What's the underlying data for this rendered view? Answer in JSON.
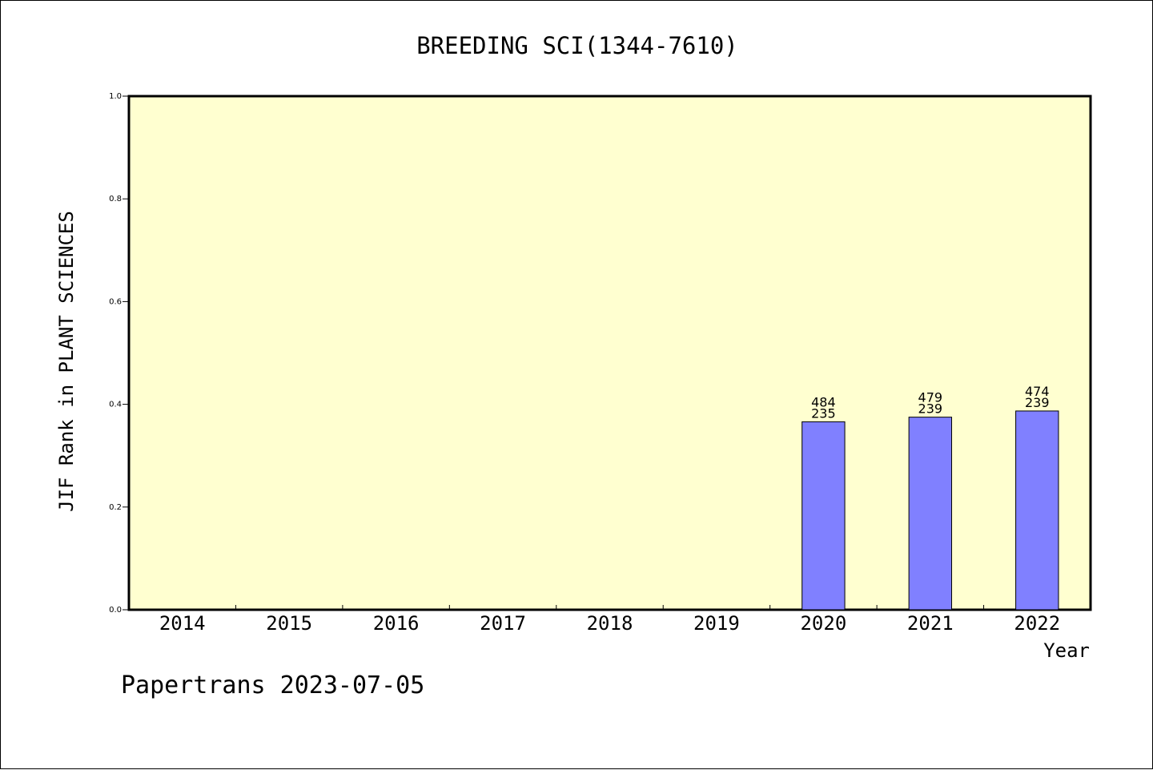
{
  "chart_data": {
    "type": "bar",
    "title": "BREEDING SCI(1344-7610)",
    "xlabel": "Year",
    "ylabel": "JIF Rank in PLANT SCIENCES",
    "ylim": [
      0,
      1.0
    ],
    "yticks": [
      "0.0",
      "0.2",
      "0.4",
      "0.6",
      "0.8",
      "1.0"
    ],
    "categories": [
      "2014",
      "2015",
      "2016",
      "2017",
      "2018",
      "2019",
      "2020",
      "2021",
      "2022"
    ],
    "values": [
      null,
      null,
      null,
      null,
      null,
      null,
      0.366,
      0.375,
      0.387
    ],
    "bar_labels": [
      null,
      null,
      null,
      null,
      null,
      null,
      {
        "top": "484",
        "bottom": "235"
      },
      {
        "top": "479",
        "bottom": "239"
      },
      {
        "top": "474",
        "bottom": "239"
      }
    ],
    "grid": false,
    "colors": {
      "plot_background": "#ffffd0",
      "bar_fill": "#8080ff",
      "axis": "#000000"
    }
  },
  "footer": {
    "watermark": "Papertrans 2023-07-05"
  }
}
